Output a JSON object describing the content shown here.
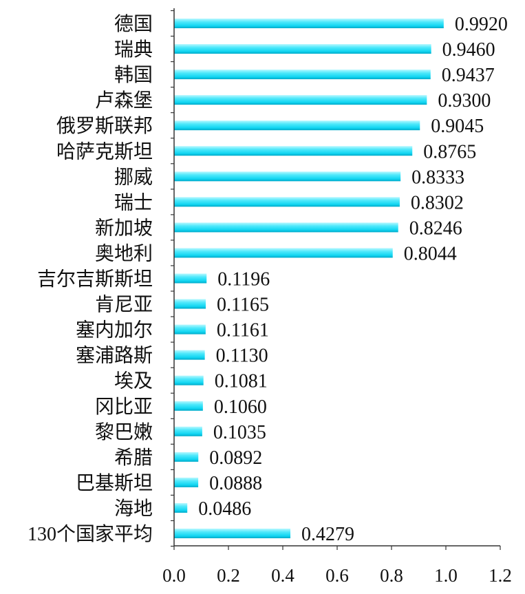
{
  "chart_data": {
    "type": "bar",
    "orientation": "horizontal",
    "categories": [
      "德国",
      "瑞典",
      "韩国",
      "卢森堡",
      "俄罗斯联邦",
      "哈萨克斯坦",
      "挪威",
      "瑞士",
      "新加坡",
      "奥地利",
      "吉尔吉斯斯坦",
      "肯尼亚",
      "塞内加尔",
      "塞浦路斯",
      "埃及",
      "冈比亚",
      "黎巴嫩",
      "希腊",
      "巴基斯坦",
      "海地",
      "130个国家平均"
    ],
    "values": [
      0.992,
      0.946,
      0.9437,
      0.93,
      0.9045,
      0.8765,
      0.8333,
      0.8302,
      0.8246,
      0.8044,
      0.1196,
      0.1165,
      0.1161,
      0.113,
      0.1081,
      0.106,
      0.1035,
      0.0892,
      0.0888,
      0.0486,
      0.4279
    ],
    "xlim": [
      0,
      1.2
    ],
    "xticks": [
      0.0,
      0.2,
      0.4,
      0.6,
      0.8,
      1.0,
      1.2
    ],
    "data_labels": true,
    "grid": false,
    "legend": "none",
    "bar_color": "#1fdcf5",
    "axis_color": "#333333"
  }
}
